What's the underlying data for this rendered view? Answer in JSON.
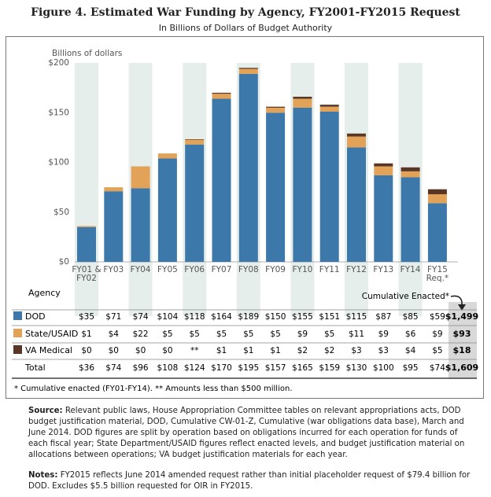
{
  "title": "Figure 4. Estimated War Funding by Agency, FY2001-FY2015 Request",
  "subtitle": "In Billions of Dollars of Budget Authority",
  "colors": {
    "dod": "#3d78ab",
    "state": "#e2a257",
    "va": "#5a3626",
    "band": "#e6eeec",
    "cumulative_band": "#d8d8d8"
  },
  "chart_data": {
    "type": "bar",
    "stacked": true,
    "categories": [
      "FY01 & FY02",
      "FY03",
      "FY04",
      "FY05",
      "FY06",
      "FY07",
      "FY08",
      "FY09",
      "FY10",
      "FY11",
      "FY12",
      "FY13",
      "FY14",
      "FY15 Req.*"
    ],
    "axis_labels": [
      [
        "FY01 &",
        "FY02"
      ],
      [
        "FY03"
      ],
      [
        "FY04"
      ],
      [
        "FY05"
      ],
      [
        "FY06"
      ],
      [
        "FY07"
      ],
      [
        "FY08"
      ],
      [
        "FY09"
      ],
      [
        "FY10"
      ],
      [
        "FY11"
      ],
      [
        "FY12"
      ],
      [
        "FY13"
      ],
      [
        "FY14"
      ],
      [
        "FY15",
        "Req.*"
      ]
    ],
    "series": [
      {
        "name": "DOD",
        "values": [
          35,
          71,
          74,
          104,
          118,
          164,
          189,
          150,
          155,
          151,
          115,
          87,
          85,
          59
        ]
      },
      {
        "name": "State/USAID",
        "values": [
          1,
          4,
          22,
          5,
          5,
          5,
          5,
          5,
          9,
          5,
          11,
          9,
          6,
          9
        ]
      },
      {
        "name": "VA Medical",
        "values": [
          0,
          0,
          0,
          0,
          0.3,
          1,
          1,
          1,
          2,
          2,
          3,
          3,
          4,
          5
        ]
      }
    ],
    "ylabel": "Billions of dollars",
    "yticks": [
      "$0",
      "$50",
      "$100",
      "$150",
      "$200"
    ],
    "ylim": [
      0,
      200
    ],
    "grid": false
  },
  "table": {
    "header_label": "Agency",
    "cumulative_header": "Cumulative Enacted*",
    "rows": [
      {
        "label": "DOD",
        "cells": [
          "$35",
          "$71",
          "$74",
          "$104",
          "$118",
          "$164",
          "$189",
          "$150",
          "$155",
          "$151",
          "$115",
          "$87",
          "$85",
          "$59"
        ],
        "cumulative": "$1,499"
      },
      {
        "label": "State/USAID",
        "cells": [
          "$1",
          "$4",
          "$22",
          "$5",
          "$5",
          "$5",
          "$5",
          "$5",
          "$9",
          "$5",
          "$11",
          "$9",
          "$6",
          "$9"
        ],
        "cumulative": "$93"
      },
      {
        "label": "VA Medical",
        "cells": [
          "$0",
          "$0",
          "$0",
          "$0",
          "**",
          "$1",
          "$1",
          "$1",
          "$2",
          "$2",
          "$3",
          "$3",
          "$4",
          "$5"
        ],
        "cumulative": "$18"
      }
    ],
    "total": {
      "label": "Total",
      "cells": [
        "$36",
        "$74",
        "$96",
        "$108",
        "$124",
        "$170",
        "$195",
        "$157",
        "$165",
        "$159",
        "$130",
        "$100",
        "$95",
        "$74"
      ],
      "cumulative": "$1,609"
    }
  },
  "footnote": "* Cumulative enacted (FY01-FY14). ** Amounts less than $500 million.",
  "source": {
    "label": "Source:",
    "text": "Relevant public laws, House Appropriation Committee tables on relevant appropriations acts, DOD budget justification material, DOD, Cumulative CW-01-Z, Cumulative (war obligations data base), March and June 2014. DOD figures are split by operation based on obligations incurred for each operation for funds of each fiscal year; State Department/USAID figures reflect enacted levels, and budget justification material on allocations between operations; VA budget justification materials for each year."
  },
  "notes": {
    "label": "Notes:",
    "text": "FY2015 reflects June 2014 amended request rather than initial placeholder request of $79.4 billion for DOD. Excludes $5.5 billion requested for OIR in FY2015."
  }
}
